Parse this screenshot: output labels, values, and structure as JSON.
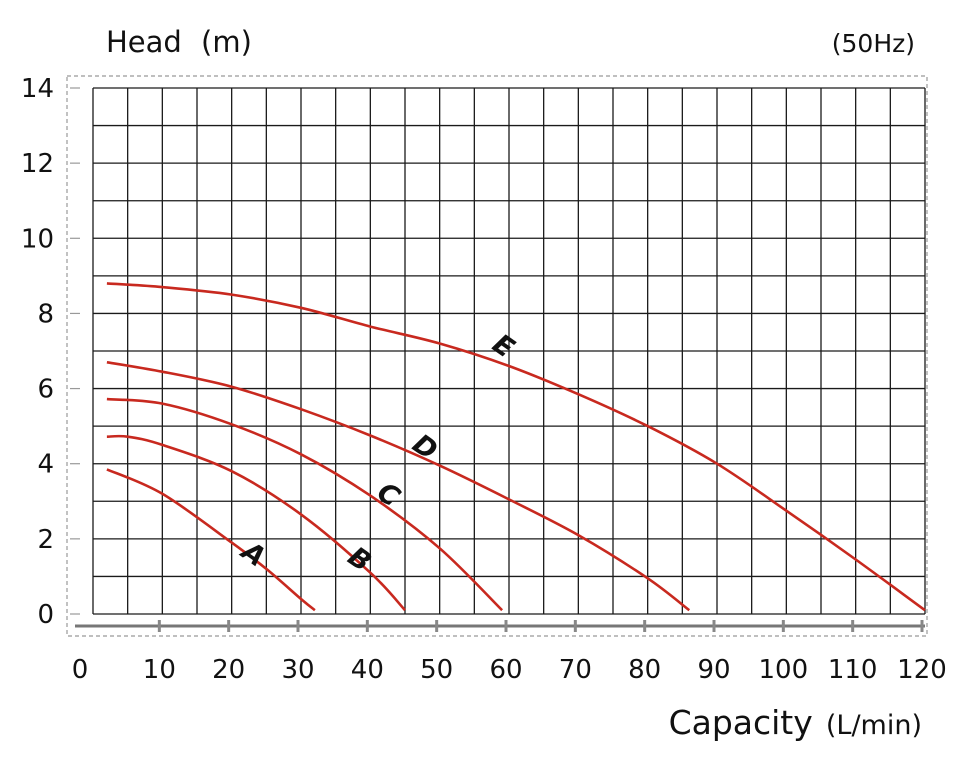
{
  "chart_data": {
    "type": "line",
    "title": "",
    "xlabel": "Capacity",
    "xunit": "(L/min)",
    "ylabel": "Head",
    "yunit": "(m)",
    "annotation": "(50Hz)",
    "xlim": [
      0,
      120
    ],
    "ylim": [
      0,
      14
    ],
    "xticks": [
      0,
      10,
      20,
      30,
      40,
      50,
      60,
      70,
      80,
      90,
      100,
      110,
      120
    ],
    "yticks": [
      0,
      2,
      4,
      6,
      8,
      10,
      12,
      14
    ],
    "grid": true,
    "line_color": "#c8291f",
    "series": [
      {
        "name": "A",
        "x": [
          2,
          10,
          20,
          25,
          30,
          32
        ],
        "y": [
          3.85,
          3.2,
          1.9,
          1.2,
          0.4,
          0.1
        ]
      },
      {
        "name": "B",
        "x": [
          2,
          5,
          10,
          20,
          30,
          40,
          45
        ],
        "y": [
          4.72,
          4.72,
          4.5,
          3.8,
          2.65,
          1.1,
          0.1
        ]
      },
      {
        "name": "C",
        "x": [
          2,
          10,
          20,
          30,
          40,
          50,
          59
        ],
        "y": [
          5.72,
          5.6,
          5.05,
          4.25,
          3.15,
          1.75,
          0.1
        ]
      },
      {
        "name": "D",
        "x": [
          2,
          10,
          20,
          30,
          40,
          50,
          60,
          70,
          80,
          86
        ],
        "y": [
          6.7,
          6.45,
          6.05,
          5.45,
          4.75,
          3.95,
          3.05,
          2.1,
          0.95,
          0.1
        ]
      },
      {
        "name": "E",
        "x": [
          2,
          10,
          20,
          30,
          40,
          50,
          60,
          70,
          80,
          90,
          100,
          110,
          120
        ],
        "y": [
          8.8,
          8.7,
          8.5,
          8.15,
          7.65,
          7.2,
          6.6,
          5.85,
          5.0,
          4.0,
          2.75,
          1.45,
          0.1
        ]
      }
    ]
  }
}
